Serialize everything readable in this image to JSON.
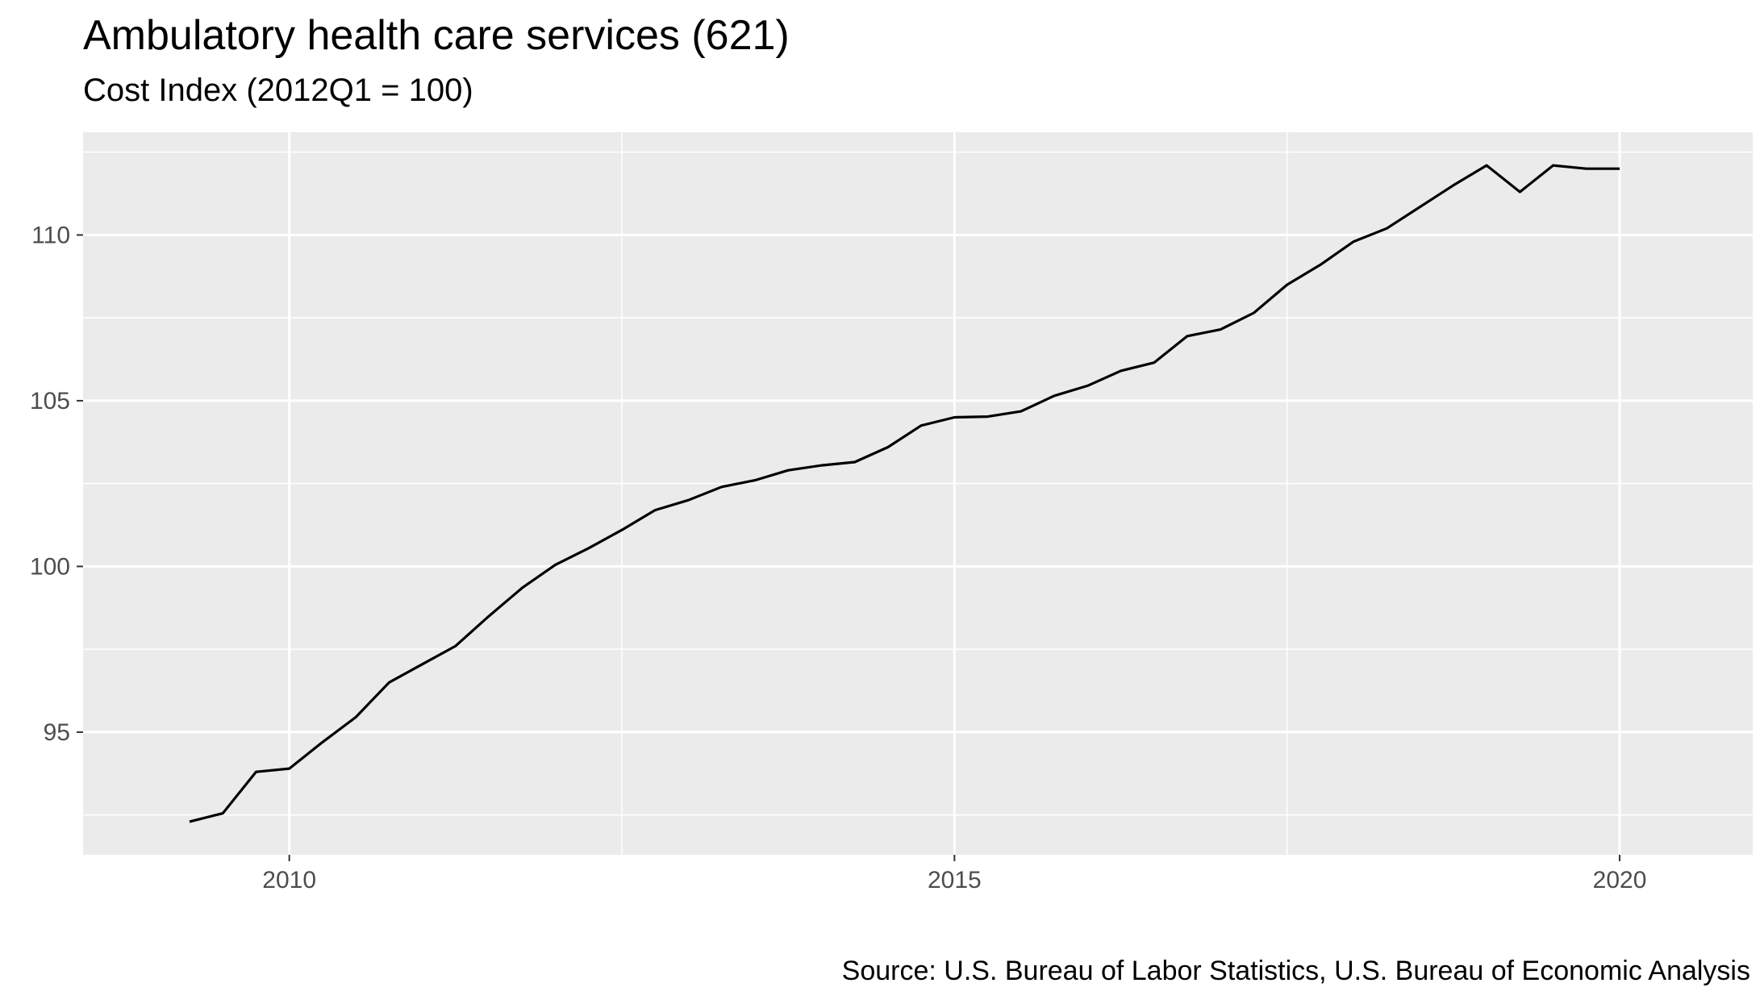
{
  "chart_data": {
    "type": "line",
    "title": "Ambulatory health care services (621)",
    "subtitle": "Cost Index (2012Q1 = 100)",
    "caption": "Source: U.S. Bureau of Labor Statistics, U.S. Bureau of Economic Analysis",
    "xlabel": "",
    "ylabel": "",
    "xlim": [
      2008.45,
      2021.0
    ],
    "ylim": [
      91.3,
      113.1
    ],
    "x_ticks": [
      2010,
      2015,
      2020
    ],
    "y_ticks": [
      95,
      100,
      105,
      110
    ],
    "x_minor_ticks": [
      2012.5,
      2017.5
    ],
    "y_minor_ticks": [
      92.5,
      97.5,
      102.5,
      107.5,
      112.5
    ],
    "grid": true,
    "legend": "none",
    "colors": {
      "panel": "#ebebeb",
      "grid": "#ffffff",
      "line": "#000000",
      "tick_text": "#4d4d4d"
    },
    "series": [
      {
        "x": [
          2009.25,
          2009.5,
          2009.75,
          2010.0,
          2010.25,
          2010.5,
          2010.75,
          2011.0,
          2011.25,
          2011.5,
          2011.75,
          2012.0,
          2012.25,
          2012.5,
          2012.75,
          2013.0,
          2013.25,
          2013.5,
          2013.75,
          2014.0,
          2014.25,
          2014.5,
          2014.75,
          2015.0,
          2015.25,
          2015.5,
          2015.75,
          2016.0,
          2016.25,
          2016.5,
          2016.75,
          2017.0,
          2017.25,
          2017.5,
          2017.75,
          2018.0,
          2018.25,
          2018.5,
          2018.75,
          2019.0,
          2019.25,
          2019.5,
          2019.75,
          2020.0
        ],
        "y": [
          92.3,
          92.55,
          93.8,
          93.9,
          94.7,
          95.45,
          96.5,
          97.05,
          97.6,
          98.5,
          99.35,
          100.05,
          100.55,
          101.1,
          101.7,
          102.0,
          102.4,
          102.6,
          102.9,
          103.05,
          103.15,
          103.6,
          104.25,
          104.5,
          104.52,
          104.68,
          105.15,
          105.45,
          105.9,
          106.15,
          106.95,
          107.15,
          107.65,
          108.5,
          109.1,
          109.8,
          110.2,
          110.85,
          111.5,
          112.1,
          111.3,
          112.1,
          112.0,
          112.0
        ]
      }
    ]
  }
}
